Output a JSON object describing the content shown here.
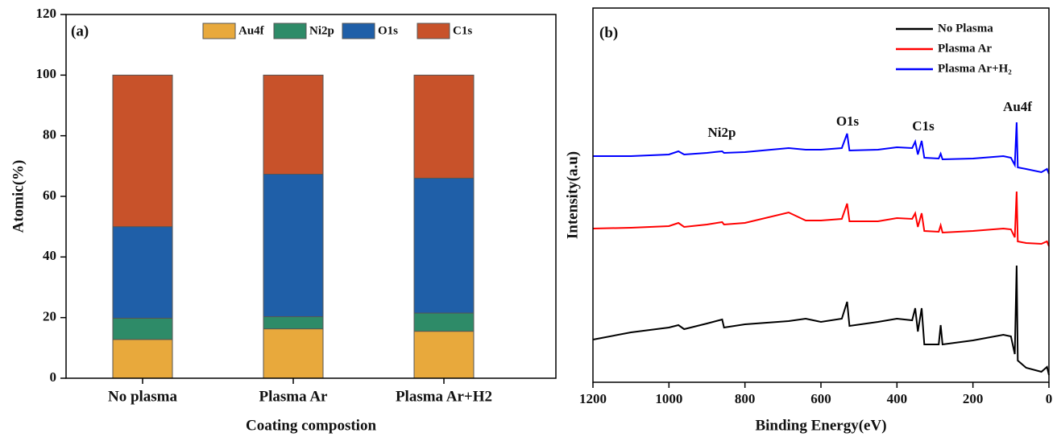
{
  "chart_data": [
    {
      "type": "bar",
      "stacked": true,
      "title": "(a)",
      "y_label": "Atomic(%)",
      "x_label": "Coating compostion",
      "categories": [
        "No plasma",
        "Plasma Ar",
        "Plasma Ar+H2"
      ],
      "series": [
        {
          "name": "Au4f",
          "color": "#e8a93c",
          "values": [
            12.8,
            16.3,
            15.5
          ]
        },
        {
          "name": "Ni2p",
          "color": "#2e8b68",
          "values": [
            7,
            4,
            6
          ]
        },
        {
          "name": "O1s",
          "color": "#1f5fa8",
          "values": [
            30.2,
            47,
            44.5
          ]
        },
        {
          "name": "C1s",
          "color": "#c8522a",
          "values": [
            50,
            32.7,
            34
          ]
        }
      ],
      "ylim": [
        0,
        120
      ],
      "yticks": [
        0,
        20,
        40,
        60,
        80,
        100,
        120
      ],
      "legend": "top"
    },
    {
      "type": "line",
      "title": "(b)",
      "y_label": "Intensity(a.u)",
      "x_label": "Binding Energy(eV)",
      "x": [
        1200,
        1100,
        1000,
        975,
        960,
        900,
        860,
        855,
        800,
        685,
        640,
        600,
        545,
        531,
        525,
        450,
        400,
        360,
        352,
        345,
        335,
        328,
        290,
        285,
        280,
        200,
        120,
        100,
        90,
        85,
        82,
        60,
        20,
        5,
        0
      ],
      "series": [
        {
          "name": "No Plasma",
          "color": "#000000",
          "values": [
            53,
            62,
            68,
            71,
            66,
            73,
            78,
            68,
            72,
            76,
            79,
            75,
            79,
            100,
            70,
            75,
            79,
            77,
            92,
            63,
            92,
            47,
            47,
            71,
            47,
            52,
            59,
            57,
            35,
            145,
            27,
            18,
            13,
            19,
            9
          ]
        },
        {
          "name": "Plasma Ar",
          "color": "#ff0000",
          "values": [
            191,
            192,
            194,
            198,
            193,
            196,
            199,
            196,
            198,
            211,
            201,
            201,
            203,
            222,
            200,
            200,
            204,
            203,
            210,
            193,
            210,
            188,
            187,
            195,
            186,
            188,
            191,
            190,
            180,
            237,
            175,
            173,
            172,
            175,
            169
          ]
        },
        {
          "name": "Plasma Ar+H₂",
          "color": "#0000ff",
          "values": [
            281,
            281,
            283,
            287,
            283,
            285,
            287,
            285,
            286,
            291,
            289,
            289,
            291,
            309,
            288,
            289,
            292,
            291,
            299,
            283,
            300,
            279,
            278,
            284,
            277,
            278,
            281,
            279,
            270,
            323,
            267,
            265,
            261,
            265,
            259
          ]
        }
      ],
      "annotations": [
        "Ni2p",
        "O1s",
        "C1s",
        "Au4f"
      ],
      "xlim": [
        1200,
        0
      ],
      "xticks": [
        1200,
        1000,
        800,
        600,
        400,
        200,
        0
      ],
      "ylim": [
        0,
        465
      ],
      "legend": "upper right"
    }
  ]
}
